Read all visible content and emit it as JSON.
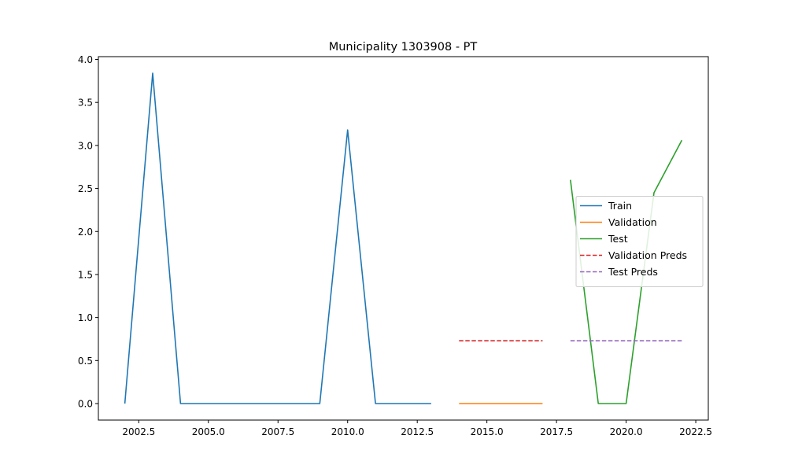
{
  "chart_data": {
    "type": "line",
    "title": "Municipality 1303908 - PT",
    "xlabel": "",
    "ylabel": "",
    "xlim": [
      2001.05,
      2022.95
    ],
    "ylim": [
      -0.192,
      4.032
    ],
    "x_ticks": [
      2002.5,
      2005.0,
      2007.5,
      2010.0,
      2012.5,
      2015.0,
      2017.5,
      2020.0,
      2022.5
    ],
    "x_tick_labels": [
      "2002.5",
      "2005.0",
      "2007.5",
      "2010.0",
      "2012.5",
      "2015.0",
      "2017.5",
      "2020.0",
      "2022.5"
    ],
    "y_ticks": [
      0.0,
      0.5,
      1.0,
      1.5,
      2.0,
      2.5,
      3.0,
      3.5,
      4.0
    ],
    "y_tick_labels": [
      "0.0",
      "0.5",
      "1.0",
      "1.5",
      "2.0",
      "2.5",
      "3.0",
      "3.5",
      "4.0"
    ],
    "grid": false,
    "legend_position": "center-right",
    "series": [
      {
        "name": "Train",
        "color": "#1f77b4",
        "style": "solid",
        "x": [
          2002,
          2003,
          2004,
          2005,
          2006,
          2007,
          2008,
          2009,
          2010,
          2011,
          2012,
          2013
        ],
        "y": [
          0.0,
          3.84,
          0.0,
          0.0,
          0.0,
          0.0,
          0.0,
          0.0,
          3.18,
          0.0,
          0.0,
          0.0
        ]
      },
      {
        "name": "Validation",
        "color": "#ff7f0e",
        "style": "solid",
        "x": [
          2014,
          2015,
          2016,
          2017
        ],
        "y": [
          0.0,
          0.0,
          0.0,
          0.0
        ]
      },
      {
        "name": "Test",
        "color": "#2ca02c",
        "style": "solid",
        "x": [
          2018,
          2019,
          2020,
          2021,
          2022
        ],
        "y": [
          2.6,
          0.0,
          0.0,
          2.45,
          3.06
        ]
      },
      {
        "name": "Validation Preds",
        "color": "#d62728",
        "style": "dashed",
        "x": [
          2014,
          2015,
          2016,
          2017
        ],
        "y": [
          0.73,
          0.73,
          0.73,
          0.73
        ]
      },
      {
        "name": "Test Preds",
        "color": "#9467bd",
        "style": "dashed",
        "x": [
          2018,
          2019,
          2020,
          2021,
          2022
        ],
        "y": [
          0.73,
          0.73,
          0.73,
          0.73,
          0.73
        ]
      }
    ]
  }
}
